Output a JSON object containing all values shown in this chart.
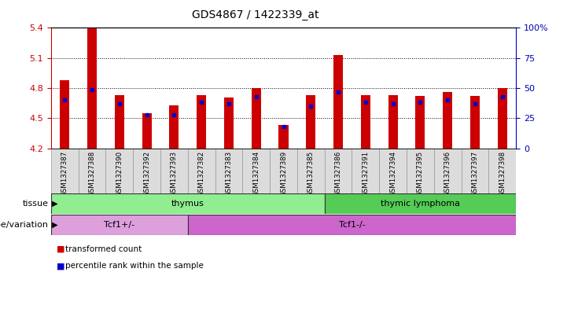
{
  "title": "GDS4867 / 1422339_at",
  "samples": [
    "GSM1327387",
    "GSM1327388",
    "GSM1327390",
    "GSM1327392",
    "GSM1327393",
    "GSM1327382",
    "GSM1327383",
    "GSM1327384",
    "GSM1327389",
    "GSM1327385",
    "GSM1327386",
    "GSM1327391",
    "GSM1327394",
    "GSM1327395",
    "GSM1327396",
    "GSM1327397",
    "GSM1327398"
  ],
  "red_values": [
    4.88,
    5.4,
    4.73,
    4.55,
    4.63,
    4.73,
    4.71,
    4.8,
    4.43,
    4.73,
    5.13,
    4.73,
    4.73,
    4.72,
    4.76,
    4.72,
    4.8
  ],
  "blue_values": [
    40,
    49,
    37,
    28,
    28,
    38,
    37,
    43,
    18,
    35,
    47,
    38,
    37,
    38,
    40,
    37,
    43
  ],
  "ymin": 4.2,
  "ymax": 5.4,
  "yticks_left": [
    4.2,
    4.5,
    4.8,
    5.1,
    5.4
  ],
  "yticks_right": [
    0,
    25,
    50,
    75,
    100
  ],
  "grid_lines": [
    4.5,
    4.8,
    5.1
  ],
  "tissue_groups": [
    {
      "label": "thymus",
      "start": 0,
      "end": 10,
      "color": "#90EE90"
    },
    {
      "label": "thymic lymphoma",
      "start": 10,
      "end": 17,
      "color": "#55CC55"
    }
  ],
  "genotype_groups": [
    {
      "label": "Tcf1+/-",
      "start": 0,
      "end": 5,
      "color": "#DDA0DD"
    },
    {
      "label": "Tcf1-/-",
      "start": 5,
      "end": 17,
      "color": "#CC66CC"
    }
  ],
  "bar_color_red": "#CC0000",
  "bar_color_blue": "#0000CC",
  "tick_color_left": "#CC0000",
  "tick_color_right": "#0000BB",
  "legend_red": "transformed count",
  "legend_blue": "percentile rank within the sample",
  "bar_width": 0.35
}
